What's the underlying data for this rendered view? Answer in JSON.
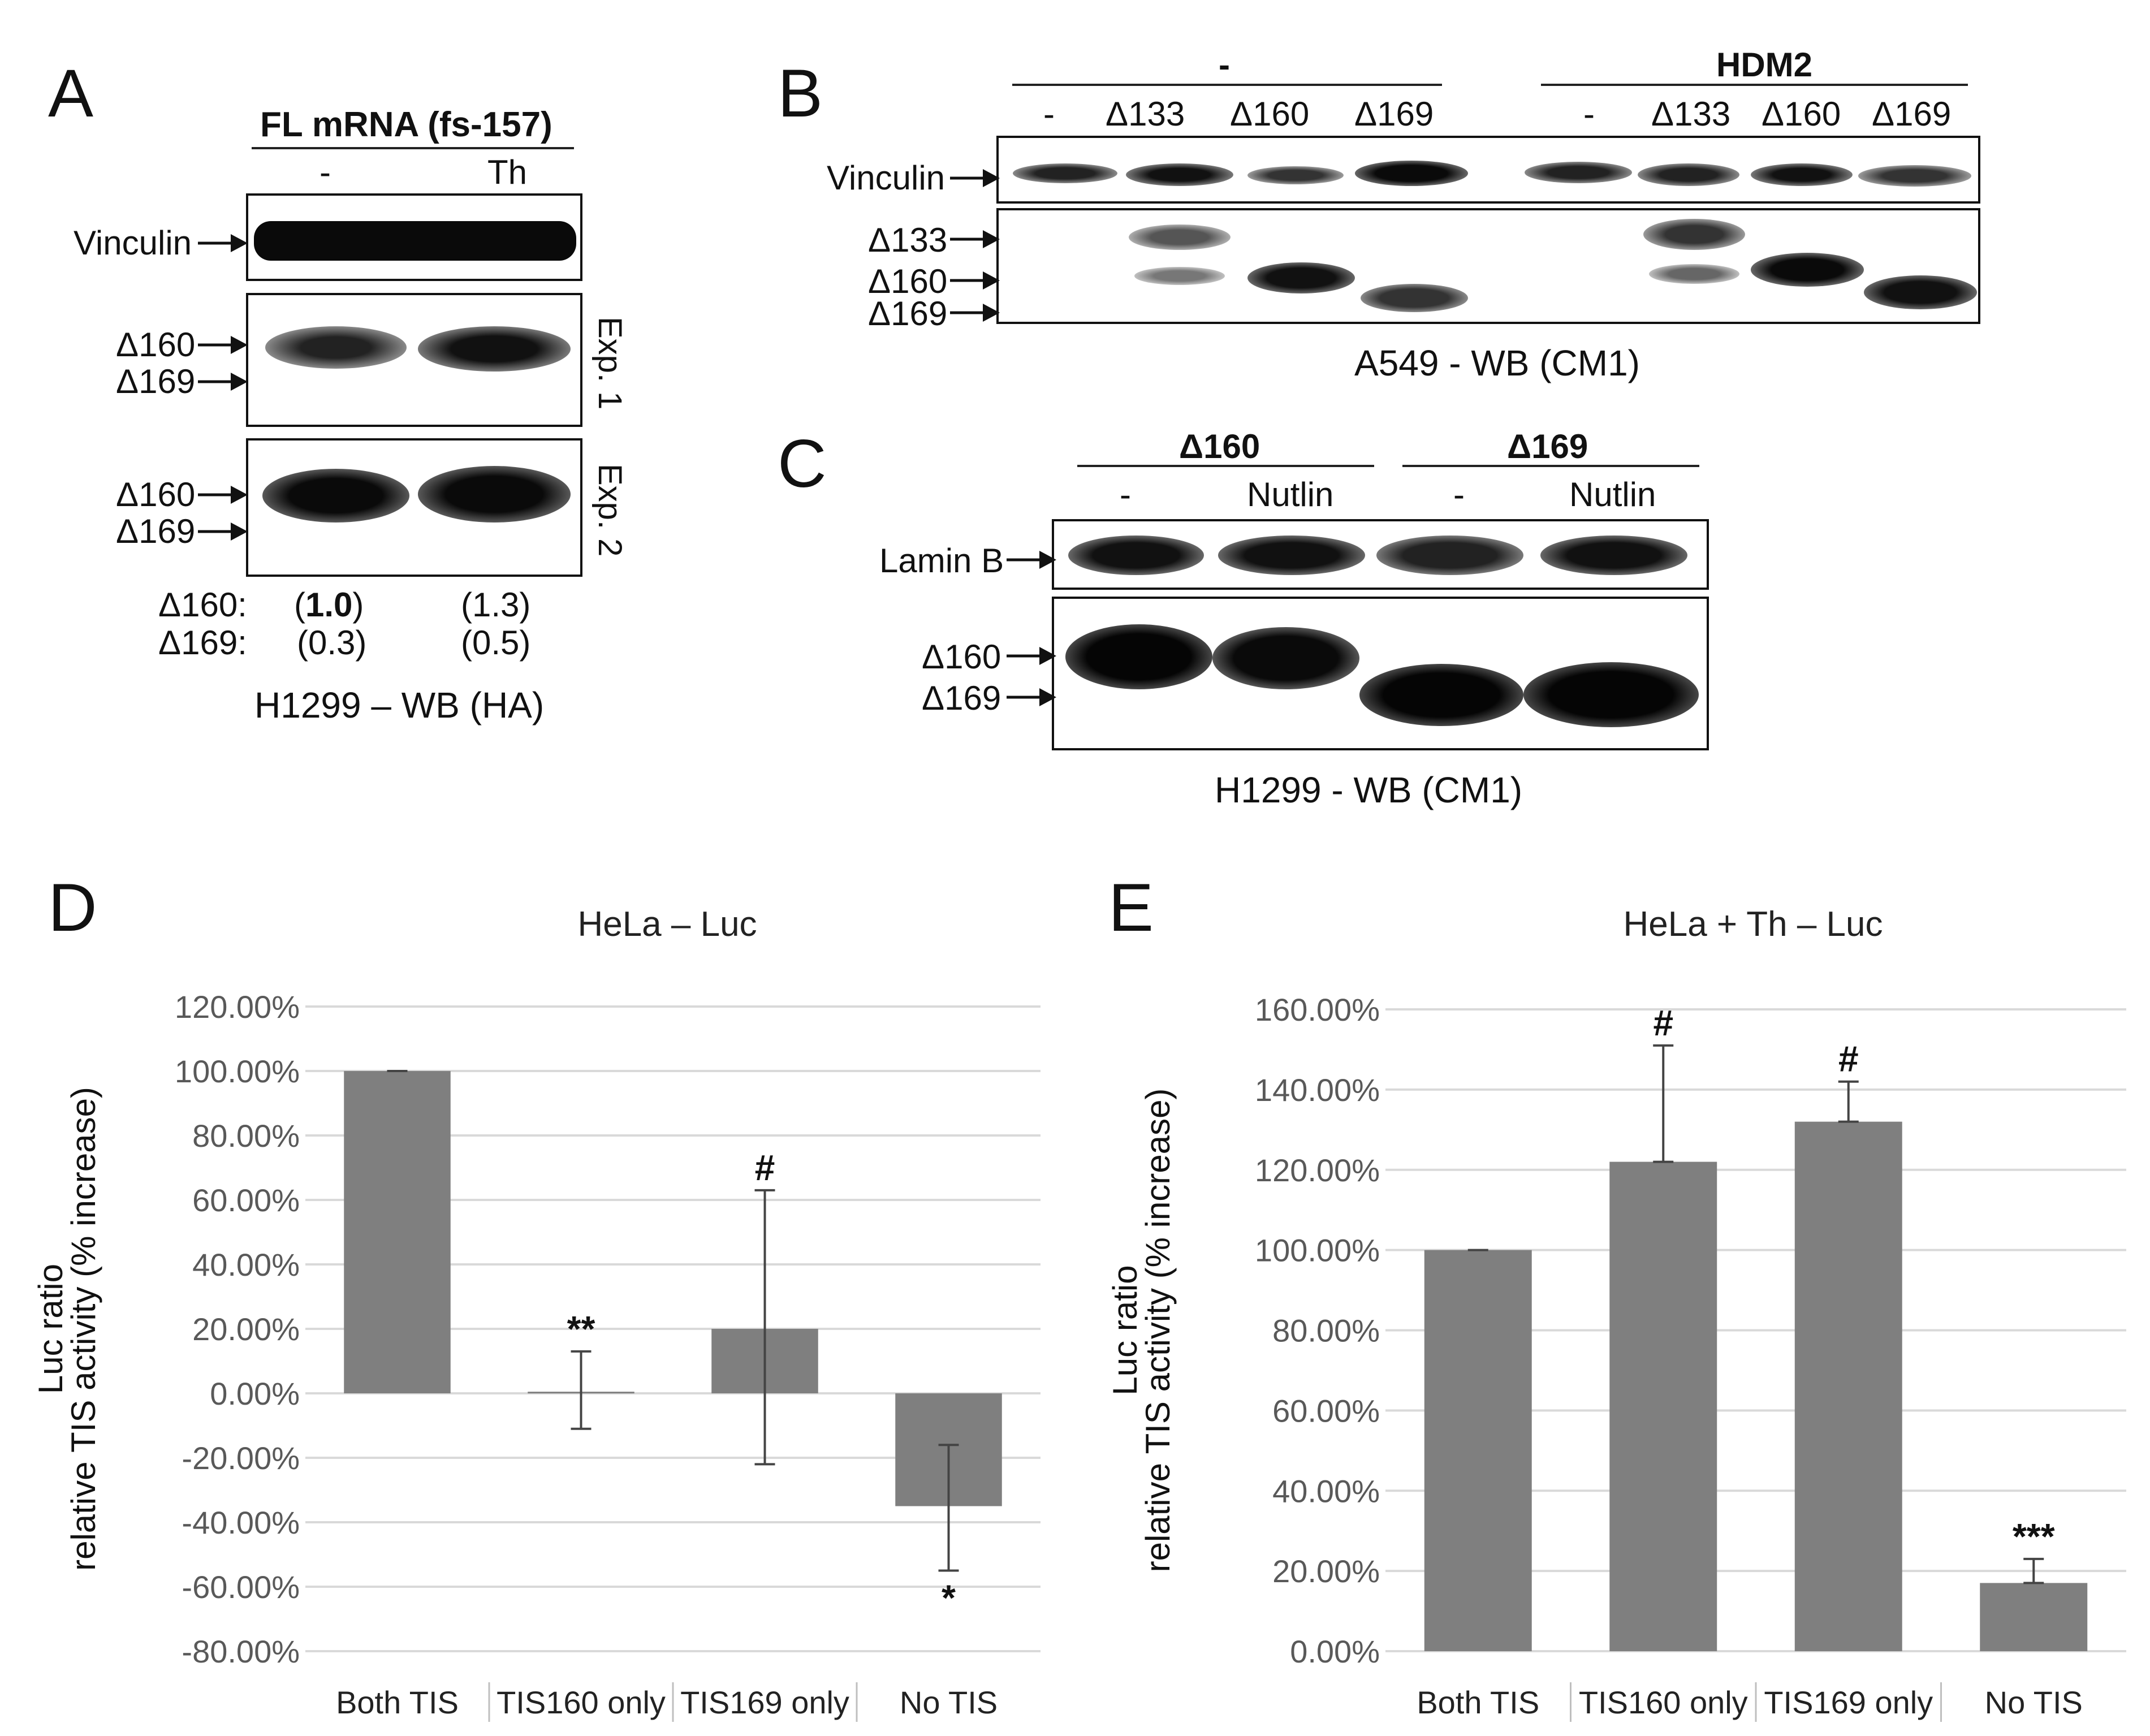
{
  "panels": {
    "A": {
      "letter": "A",
      "header": "FL mRNA (fs-157)",
      "lanes": [
        "-",
        "Th"
      ],
      "blots": {
        "vinculin_label": "Vinculin",
        "exp1_labels": [
          "Δ160",
          "Δ169"
        ],
        "exp2_labels": [
          "Δ160",
          "Δ169"
        ],
        "exp1_side": "Exp. 1",
        "exp2_side": "Exp. 2"
      },
      "quant": {
        "row1_label": "Δ160:",
        "row1_values_pre": "(",
        "row1_value1": "1.0",
        "row1_values_post": ")",
        "row1_value2": "(1.3)",
        "row2_label": "Δ169:",
        "row2_value1": "(0.3)",
        "row2_value2": "(0.5)"
      },
      "caption": "H1299  – WB (HA)"
    },
    "B": {
      "letter": "B",
      "group1": "-",
      "group2": "HDM2",
      "lanes": [
        "-",
        "Δ133",
        "Δ160",
        "Δ169",
        "-",
        "Δ133",
        "Δ160",
        "Δ169"
      ],
      "vinculin_label": "Vinculin",
      "band_labels": [
        "Δ133",
        "Δ160",
        "Δ169"
      ],
      "caption": "A549 - WB (CM1)"
    },
    "C": {
      "letter": "C",
      "group1": "Δ160",
      "group2": "Δ169",
      "lanes": [
        "-",
        "Nutlin",
        "-",
        "Nutlin"
      ],
      "lamin_label": "Lamin B",
      "band_labels": [
        "Δ160",
        "Δ169"
      ],
      "caption": "H1299 - WB (CM1)"
    },
    "D": {
      "letter": "D"
    },
    "E": {
      "letter": "E"
    }
  },
  "chart_data": [
    {
      "type": "bar",
      "title": "HeLa – Luc",
      "ylabel_line1": "Luc ratio",
      "ylabel_line2": "relative TIS activity (% increase)",
      "categories": [
        "Both TIS",
        "TIS160 only",
        "TIS169 only",
        "No TIS"
      ],
      "values": [
        100,
        0.5,
        20,
        -35
      ],
      "errors_upper": [
        100,
        13,
        63,
        -16
      ],
      "errors_lower": [
        100,
        -11,
        -22,
        -55
      ],
      "annotations": [
        "",
        "**",
        "#",
        "*"
      ],
      "ylim": [
        -80,
        120
      ],
      "yticks": [
        120,
        100,
        80,
        60,
        40,
        20,
        0,
        -20,
        -40,
        -60,
        -80
      ],
      "ytick_labels": [
        "120.00%",
        "100.00%",
        "80.00%",
        "60.00%",
        "40.00%",
        "20.00%",
        "0.00%",
        "-20.00%",
        "-40.00%",
        "-60.00%",
        "-80.00%"
      ],
      "bar_color": "#7f7f7f",
      "grid": true
    },
    {
      "type": "bar",
      "title": "HeLa + Th – Luc",
      "ylabel_line1": "Luc ratio",
      "ylabel_line2": "relative TIS activity (% increase)",
      "categories": [
        "Both TIS",
        "TIS160 only",
        "TIS169 only",
        "No TIS"
      ],
      "values": [
        100,
        122,
        132,
        17
      ],
      "errors_upper": [
        100,
        151,
        142,
        23
      ],
      "errors_lower": [
        100,
        122,
        132,
        17
      ],
      "annotations": [
        "",
        "#",
        "#",
        "***"
      ],
      "ylim": [
        0,
        160
      ],
      "yticks": [
        160,
        140,
        120,
        100,
        80,
        60,
        40,
        20,
        0
      ],
      "ytick_labels": [
        "160.00%",
        "140.00%",
        "120.00%",
        "100.00%",
        "80.00%",
        "60.00%",
        "40.00%",
        "20.00%",
        "0.00%"
      ],
      "bar_color": "#7f7f7f",
      "grid": true
    }
  ]
}
